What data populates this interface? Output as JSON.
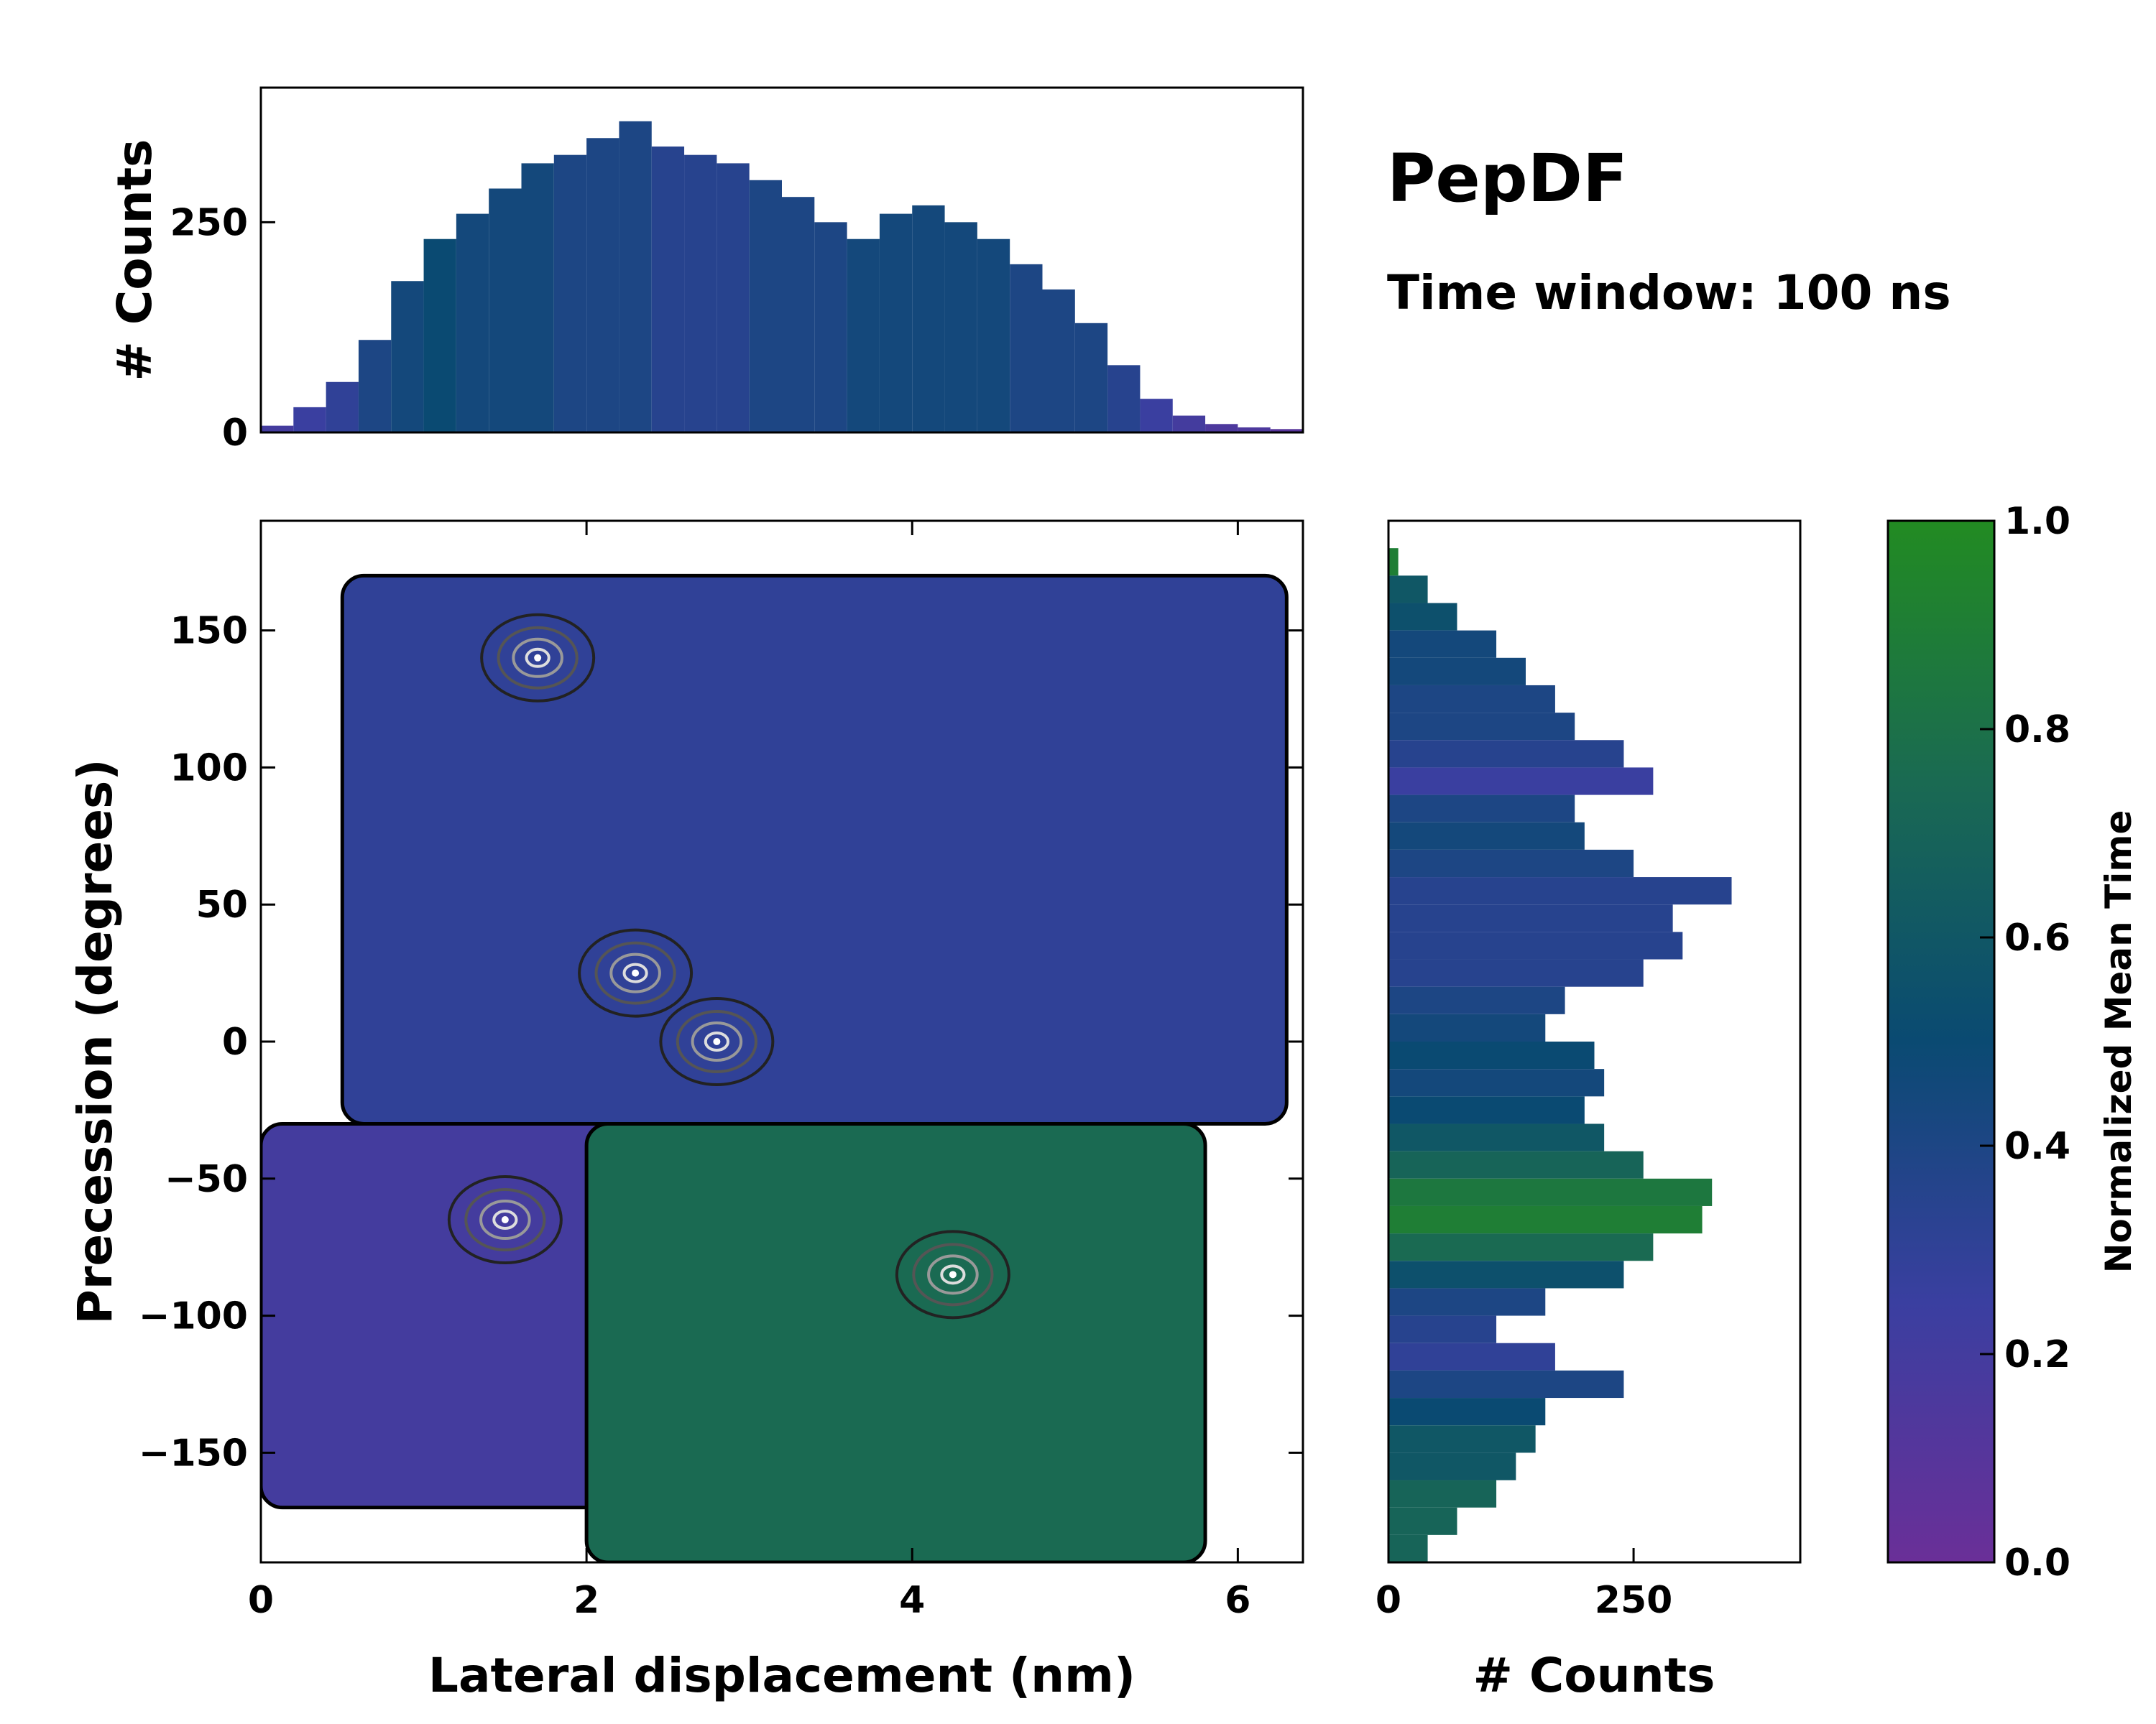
{
  "chart_data": {
    "type": "heatmap",
    "title": "PepDF",
    "subtitle": "Time window: 100 ns",
    "main": {
      "xlabel": "Lateral displacement (nm)",
      "ylabel": "Precession (degrees)",
      "xlim": [
        0,
        6.4
      ],
      "ylim": [
        -190,
        190
      ],
      "xticks": [
        0,
        2,
        4,
        6
      ],
      "xtick_labels": [
        "0",
        "2",
        "4",
        "6"
      ],
      "yticks": [
        150,
        100,
        50,
        0,
        -50,
        -100,
        -150
      ],
      "ytick_labels": [
        "150",
        "100",
        "50",
        "0",
        "−50",
        "−100",
        "−150"
      ],
      "regions": [
        {
          "name": "upper lobe",
          "x_range": [
            0.5,
            6.3
          ],
          "y_range": [
            -30,
            170
          ],
          "dominant_value": 0.3
        },
        {
          "name": "lower-left lobe",
          "x_range": [
            0,
            2.5
          ],
          "y_range": [
            -170,
            -30
          ],
          "dominant_value": 0.2
        },
        {
          "name": "lower-right lobe",
          "x_range": [
            2.0,
            5.8
          ],
          "y_range": [
            -190,
            -30
          ],
          "dominant_value": 0.75
        }
      ],
      "density_peaks": [
        {
          "x": 2.3,
          "y": 25
        },
        {
          "x": 1.7,
          "y": 140
        },
        {
          "x": 4.25,
          "y": -85
        },
        {
          "x": 1.5,
          "y": -65
        },
        {
          "x": 2.8,
          "y": 0
        }
      ]
    },
    "top_hist": {
      "ylabel": "# Counts",
      "yticks": [
        0,
        250
      ],
      "ytick_labels": [
        "0",
        "250"
      ],
      "ylim": [
        0,
        410
      ],
      "x_centers": [
        0.1,
        0.3,
        0.5,
        0.7,
        0.9,
        1.1,
        1.3,
        1.5,
        1.7,
        1.9,
        2.1,
        2.3,
        2.5,
        2.7,
        2.9,
        3.1,
        3.3,
        3.5,
        3.7,
        3.9,
        4.1,
        4.3,
        4.5,
        4.7,
        4.9,
        5.1,
        5.3,
        5.5,
        5.7,
        5.9,
        6.1,
        6.3
      ],
      "counts": [
        8,
        30,
        60,
        110,
        180,
        230,
        260,
        290,
        320,
        330,
        350,
        370,
        340,
        330,
        320,
        300,
        280,
        250,
        230,
        260,
        270,
        250,
        230,
        200,
        170,
        130,
        80,
        40,
        20,
        10,
        6,
        4
      ],
      "colors": [
        0.2,
        0.25,
        0.3,
        0.4,
        0.45,
        0.5,
        0.45,
        0.45,
        0.45,
        0.4,
        0.4,
        0.4,
        0.35,
        0.35,
        0.35,
        0.4,
        0.4,
        0.4,
        0.45,
        0.45,
        0.45,
        0.45,
        0.45,
        0.4,
        0.4,
        0.4,
        0.35,
        0.25,
        0.2,
        0.15,
        0.15,
        0.1
      ]
    },
    "right_hist": {
      "xlabel": "# Counts",
      "xticks": [
        0,
        250
      ],
      "xtick_labels": [
        "0",
        "250"
      ],
      "xlim": [
        0,
        420
      ],
      "y_centers": [
        175,
        165,
        155,
        145,
        135,
        125,
        115,
        105,
        95,
        85,
        75,
        65,
        55,
        45,
        35,
        25,
        15,
        5,
        -5,
        -15,
        -25,
        -35,
        -45,
        -55,
        -65,
        -75,
        -85,
        -95,
        -105,
        -115,
        -125,
        -135,
        -145,
        -155,
        -165,
        -175,
        -185
      ],
      "counts": [
        10,
        40,
        70,
        110,
        140,
        170,
        190,
        240,
        270,
        190,
        200,
        250,
        350,
        290,
        300,
        260,
        180,
        160,
        210,
        220,
        200,
        220,
        260,
        330,
        320,
        270,
        240,
        160,
        110,
        170,
        240,
        160,
        150,
        130,
        110,
        70,
        40
      ],
      "colors": [
        0.9,
        0.6,
        0.55,
        0.45,
        0.45,
        0.4,
        0.4,
        0.35,
        0.25,
        0.4,
        0.45,
        0.4,
        0.35,
        0.35,
        0.35,
        0.35,
        0.4,
        0.45,
        0.5,
        0.45,
        0.5,
        0.6,
        0.7,
        0.85,
        0.9,
        0.75,
        0.55,
        0.4,
        0.35,
        0.3,
        0.4,
        0.5,
        0.6,
        0.6,
        0.7,
        0.7,
        0.7
      ]
    },
    "colorbar": {
      "label": "Normalized Mean Time",
      "ticks": [
        0.0,
        0.2,
        0.4,
        0.6,
        0.8,
        1.0
      ],
      "tick_labels": [
        "0.0",
        "0.2",
        "0.4",
        "0.6",
        "0.8",
        "1.0"
      ],
      "color_low": "#6a2f98",
      "color_mid_low": "#3a3fa0",
      "color_mid": "#0a4a72",
      "color_mid_high": "#1a6a52",
      "color_high": "#228b22"
    }
  }
}
